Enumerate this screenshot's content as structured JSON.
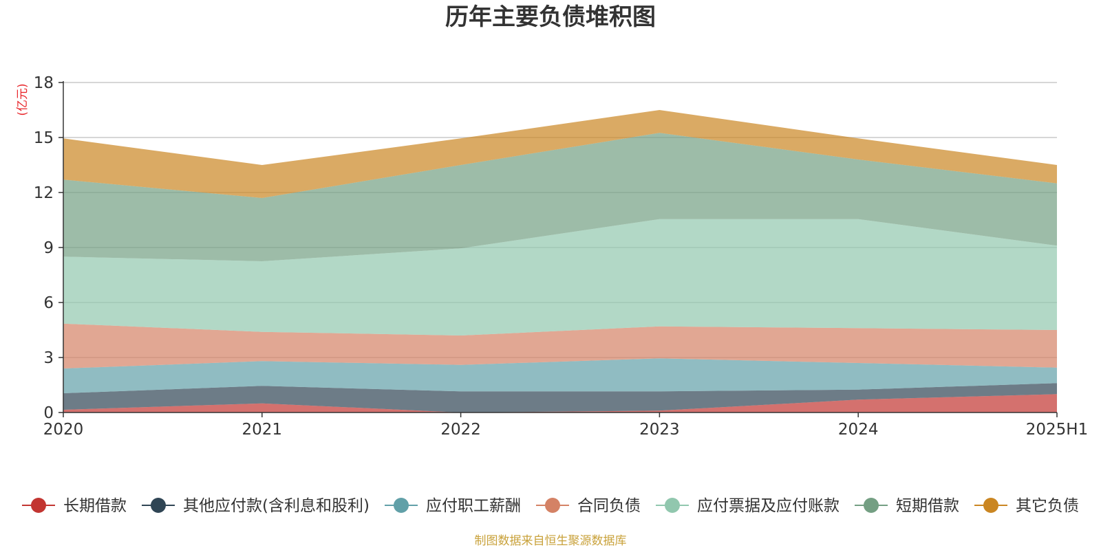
{
  "chart_data": {
    "type": "area",
    "stacked": true,
    "title": "历年主要负债堆积图",
    "unit_label": "(亿元)",
    "x": [
      "2020",
      "2021",
      "2022",
      "2023",
      "2024",
      "2025H1"
    ],
    "ylim": [
      0,
      18
    ],
    "yticks": [
      0,
      3,
      6,
      9,
      12,
      15,
      18
    ],
    "grid": true,
    "legend_position": "bottom",
    "series": [
      {
        "name": "长期借款",
        "color": "#c23531",
        "values": [
          0.15,
          0.5,
          0.0,
          0.1,
          0.7,
          1.0
        ]
      },
      {
        "name": "其他应付款(含利息和股利)",
        "color": "#2f4554",
        "values": [
          0.9,
          0.95,
          1.15,
          1.05,
          0.55,
          0.6
        ]
      },
      {
        "name": "应付职工薪酬",
        "color": "#61a0a8",
        "values": [
          1.35,
          1.35,
          1.45,
          1.8,
          1.45,
          0.85
        ]
      },
      {
        "name": "合同负债",
        "color": "#d48265",
        "values": [
          2.45,
          1.6,
          1.6,
          1.75,
          1.9,
          2.05
        ]
      },
      {
        "name": "应付票据及应付账款",
        "color": "#91c7ae",
        "values": [
          3.65,
          3.85,
          4.75,
          5.85,
          5.95,
          4.6
        ]
      },
      {
        "name": "短期借款",
        "color": "#749f83",
        "values": [
          4.2,
          3.45,
          4.55,
          4.7,
          3.25,
          3.4
        ]
      },
      {
        "name": "其它负债",
        "color": "#ca8622",
        "values": [
          2.25,
          1.8,
          1.45,
          1.25,
          1.15,
          1.0
        ]
      }
    ]
  },
  "source_note": "制图数据来自恒生聚源数据库"
}
